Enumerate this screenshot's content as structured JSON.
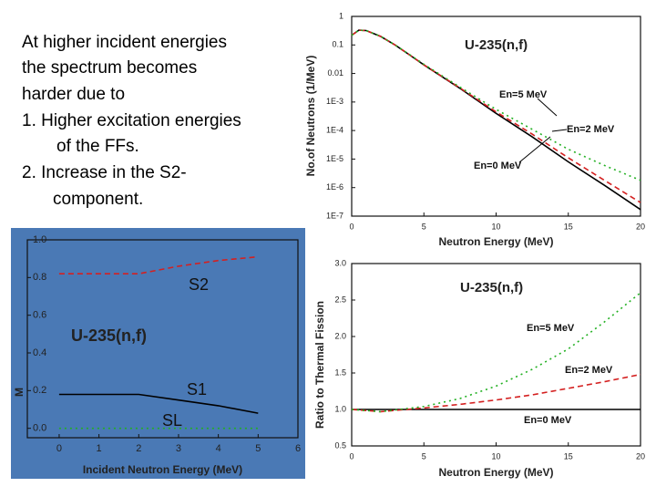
{
  "text_lines": [
    "At higher incident energies",
    "the spectrum becomes",
    "harder due to",
    "1. Higher excitation energies",
    "of the FFs.",
    "2. Increase in the S2-",
    "component."
  ],
  "chart_data": [
    {
      "type": "line",
      "title": "U-235(n,f)",
      "x_label": "Neutron Energy (MeV)",
      "y_label": "No.of Neutrons (1/MeV)",
      "log_y": true,
      "xlim": [
        0,
        20
      ],
      "xticks": [
        0,
        5,
        10,
        15,
        20
      ],
      "ylim": [
        1e-07,
        1
      ],
      "yticks": [
        {
          "value": 1e-07,
          "label": "1E-7"
        },
        {
          "value": 1e-06,
          "label": "1E-6"
        },
        {
          "value": 1e-05,
          "label": "1E-5"
        },
        {
          "value": 0.0001,
          "label": "1E-4"
        },
        {
          "value": 0.001,
          "label": "1E-3"
        },
        0.01,
        0.1,
        1
      ],
      "x": [
        0,
        0.5,
        1,
        2,
        3,
        4,
        5,
        7.5,
        10,
        12.5,
        15,
        17.5,
        20
      ],
      "series": [
        {
          "name": "En=0 MeV",
          "color": "#000000",
          "linestyle": "solid",
          "values": [
            0.22,
            0.33,
            0.32,
            0.2,
            0.1,
            0.045,
            0.02,
            0.003,
            0.0004,
            6e-05,
            8e-06,
            1.2e-06,
            1.7e-07
          ]
        },
        {
          "name": "En=2 MeV",
          "color": "#d42020",
          "linestyle": "dashed",
          "values": [
            0.22,
            0.33,
            0.32,
            0.2,
            0.1,
            0.045,
            0.02,
            0.0031,
            0.00045,
            7.5e-05,
            1.1e-05,
            1.8e-06,
            3e-07
          ]
        },
        {
          "name": "En=5 MeV",
          "color": "#22b022",
          "linestyle": "dotted",
          "values": [
            0.22,
            0.33,
            0.32,
            0.2,
            0.1,
            0.046,
            0.021,
            0.0033,
            0.00055,
            0.00011,
            2.2e-05,
            6e-06,
            1.8e-06
          ]
        }
      ]
    },
    {
      "type": "line",
      "title": "U-235(n,f)",
      "x_label": "Neutron Energy (MeV)",
      "y_label": "Ratio to Thermal Fission",
      "log_y": false,
      "xlim": [
        0,
        20
      ],
      "xticks": [
        0,
        5,
        10,
        15,
        20
      ],
      "ylim": [
        0.5,
        3.0
      ],
      "yticks": [
        0.5,
        {
          "value": 1,
          "label": "1.0"
        },
        1.5,
        {
          "value": 2,
          "label": "2.0"
        },
        2.5,
        {
          "value": 3,
          "label": "3.0"
        }
      ],
      "x": [
        0,
        2,
        5,
        7.5,
        10,
        12.5,
        15,
        17.5,
        20
      ],
      "series": [
        {
          "name": "En=0 MeV",
          "color": "#000000",
          "linestyle": "solid",
          "values": [
            1,
            1,
            1,
            1,
            1,
            1,
            1,
            1,
            1
          ]
        },
        {
          "name": "En=2 MeV",
          "color": "#d42020",
          "linestyle": "dashed",
          "values": [
            1.0,
            0.97,
            1.02,
            1.07,
            1.13,
            1.2,
            1.29,
            1.38,
            1.48
          ]
        },
        {
          "name": "En=5 MeV",
          "color": "#22b022",
          "linestyle": "dotted",
          "values": [
            1.0,
            0.97,
            1.04,
            1.15,
            1.32,
            1.55,
            1.83,
            2.2,
            2.6
          ]
        }
      ]
    },
    {
      "type": "line",
      "title": "U-235(n,f)",
      "x_label": "Incident Neutron Energy (MeV)",
      "y_label": "M",
      "log_y": false,
      "background": "#4a79b5",
      "xlim": [
        -0.8,
        6
      ],
      "xticks": [
        0,
        1,
        2,
        3,
        4,
        5,
        6
      ],
      "ylim": [
        -0.05,
        1.0
      ],
      "yticks": [
        {
          "value": 0,
          "label": "0.0"
        },
        0.2,
        0.4,
        0.6,
        0.8,
        {
          "value": 1,
          "label": "1.0"
        }
      ],
      "x": [
        0,
        1,
        2,
        3,
        4,
        5
      ],
      "series": [
        {
          "name": "S2",
          "color": "#d42020",
          "linestyle": "dashed",
          "values": [
            0.82,
            0.82,
            0.82,
            0.86,
            0.89,
            0.91
          ]
        },
        {
          "name": "S1",
          "color": "#000000",
          "linestyle": "solid",
          "values": [
            0.18,
            0.18,
            0.18,
            0.15,
            0.12,
            0.08
          ]
        },
        {
          "name": "SL",
          "color": "#22b022",
          "linestyle": "dotted",
          "values": [
            0,
            0,
            0,
            0,
            0,
            0
          ]
        }
      ]
    }
  ]
}
